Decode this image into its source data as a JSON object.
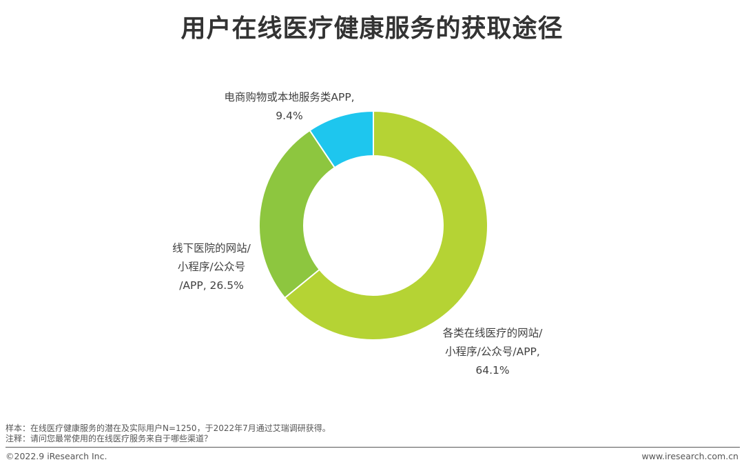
{
  "title": "用户在线医疗健康服务的获取途径",
  "chart_data": {
    "type": "pie",
    "donut": true,
    "categories": [
      "电商购物或本地服务类APP",
      "线下医院的网站/小程序/公众号/APP",
      "各类在线医疗的网站/小程序/公众号/APP"
    ],
    "values": [
      9.4,
      26.5,
      64.1
    ],
    "colors": [
      "#1EC6EE",
      "#8DC63F",
      "#B5D334"
    ],
    "labels": [
      {
        "lines": [
          "电商购物或本地服务类APP,",
          "9.4%"
        ]
      },
      {
        "lines": [
          "线下医院的网站/",
          "小程序/公众号",
          "/APP, 26.5%"
        ]
      },
      {
        "lines": [
          "各类在线医疗的网站/",
          "小程序/公众号/APP,",
          "64.1%"
        ]
      }
    ]
  },
  "footer": {
    "sample": "样本：在线医疗健康服务的潜在及实际用户N=1250，于2022年7月通过艾瑞调研获得。",
    "note": "注释：请问您最常使用的在线医疗服务来自于哪些渠道？",
    "copyright": "©2022.9 iResearch Inc.",
    "website": "www.iresearch.com.cn"
  }
}
